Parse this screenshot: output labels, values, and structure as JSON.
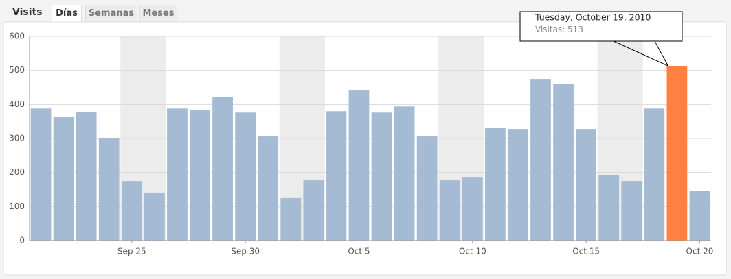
{
  "header": {
    "title": "Visits",
    "tabs": [
      "Días",
      "Semanas",
      "Meses"
    ]
  },
  "chart_data": {
    "type": "bar",
    "categories": [
      null,
      null,
      null,
      null,
      "Sep 25",
      null,
      null,
      null,
      null,
      "Sep 30",
      null,
      null,
      null,
      null,
      "Oct 5",
      null,
      null,
      null,
      null,
      "Oct 10",
      null,
      null,
      null,
      null,
      "Oct 15",
      null,
      null,
      null,
      null,
      "Oct 20"
    ],
    "series": [
      {
        "name": "Visitas",
        "color": "#a5bbd3",
        "values": [
          388,
          364,
          378,
          300,
          175,
          141,
          388,
          384,
          422,
          376,
          306,
          125,
          177,
          380,
          443,
          376,
          394,
          306,
          177,
          187,
          332,
          328,
          475,
          461,
          328,
          193,
          175,
          388,
          513,
          145
        ],
        "colors": [
          "#a5bbd3",
          "#a5bbd3",
          "#a5bbd3",
          "#a5bbd3",
          "#a5bbd3",
          "#a5bbd3",
          "#a5bbd3",
          "#a5bbd3",
          "#a5bbd3",
          "#a5bbd3",
          "#a5bbd3",
          "#a5bbd3",
          "#a5bbd3",
          "#a5bbd3",
          "#a5bbd3",
          "#a5bbd3",
          "#a5bbd3",
          "#a5bbd3",
          "#a5bbd3",
          "#a5bbd3",
          "#a5bbd3",
          "#a5bbd3",
          "#a5bbd3",
          "#a5bbd3",
          "#a5bbd3",
          "#a5bbd3",
          "#a5bbd3",
          "#a5bbd3",
          "#ff8040",
          "#a5bbd3"
        ]
      }
    ],
    "ylim": [
      0,
      600
    ],
    "yticks": [
      0,
      100,
      200,
      300,
      400,
      500,
      600
    ],
    "grid": true,
    "tooltip": {
      "title": "Tuesday, October 19, 2010",
      "label": "Visitas:"
    }
  }
}
